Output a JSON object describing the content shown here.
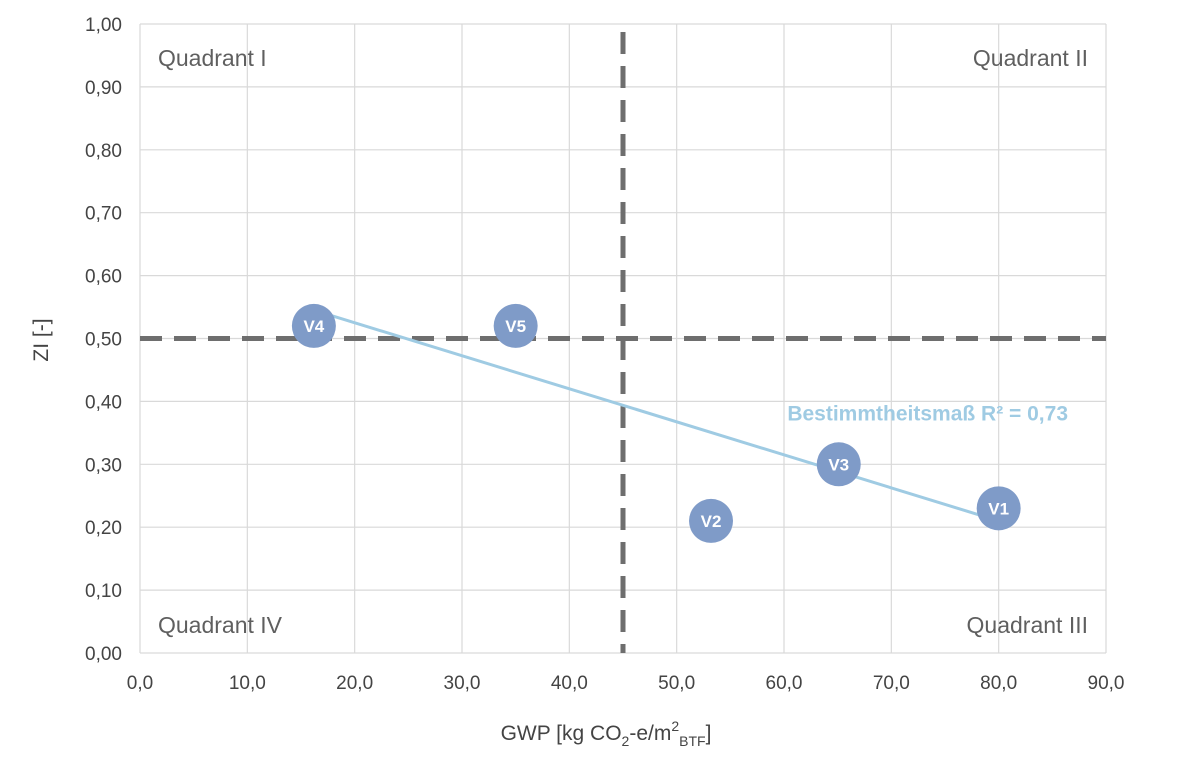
{
  "chart_data": {
    "type": "scatter",
    "xlabel": {
      "main": "GWP [kg CO",
      "sub1": "2",
      "mid": "-e/m",
      "sup": "2",
      "sub2": "BTF",
      "end": "]"
    },
    "ylabel": "ZI [-]",
    "xlim": [
      0,
      90
    ],
    "ylim": [
      0,
      1
    ],
    "x_ticks": [
      "0,0",
      "10,0",
      "20,0",
      "30,0",
      "40,0",
      "50,0",
      "60,0",
      "70,0",
      "80,0",
      "90,0"
    ],
    "y_ticks": [
      "0,00",
      "0,10",
      "0,20",
      "0,30",
      "0,40",
      "0,50",
      "0,60",
      "0,70",
      "0,80",
      "0,90",
      "1,00"
    ],
    "grid": true,
    "points": [
      {
        "label": "V1",
        "x": 80.0,
        "y": 0.23
      },
      {
        "label": "V2",
        "x": 53.2,
        "y": 0.21
      },
      {
        "label": "V3",
        "x": 65.1,
        "y": 0.3
      },
      {
        "label": "V4",
        "x": 16.2,
        "y": 0.52
      },
      {
        "label": "V5",
        "x": 35.0,
        "y": 0.52
      }
    ],
    "trendline": {
      "x": [
        16.2,
        80.0
      ],
      "y": [
        0.545,
        0.21
      ],
      "label": "Bestimmtheitsmaß R² = 0,73"
    },
    "thresholds": {
      "x": 45.0,
      "y": 0.5
    },
    "quadrant_labels": {
      "top_left": "Quadrant I",
      "top_right": "Quadrant II",
      "bottom_right": "Quadrant III",
      "bottom_left": "Quadrant IV"
    },
    "colors": {
      "point": "#7f9bc8",
      "trendline": "#9fcbe3",
      "threshold": "#6e6e6e",
      "grid": "#d9d9d9"
    }
  }
}
